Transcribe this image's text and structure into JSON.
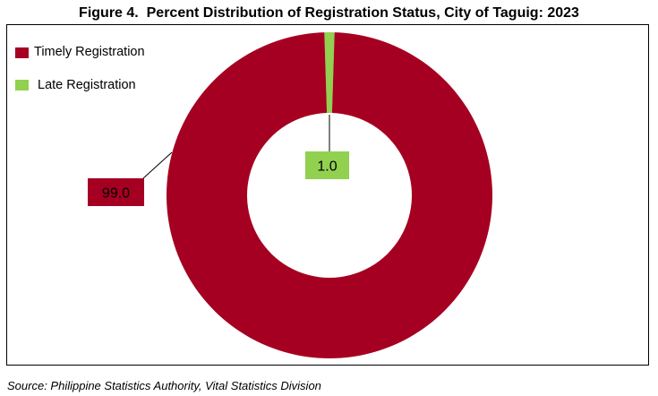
{
  "figure": {
    "title": "Figure 4.  Percent Distribution of Registration Status, City of Taguig: 2023",
    "source": "Source: Philippine Statistics Authority, Vital Statistics Division"
  },
  "chart_data": {
    "type": "pie",
    "variant": "doughnut",
    "title": "Figure 4.  Percent Distribution of Registration Status, City of Taguig: 2023",
    "categories": [
      "Timely Registration",
      "Late Registration"
    ],
    "values": [
      99.0,
      1.0
    ],
    "labels": [
      "99.0",
      "1.0"
    ],
    "unit": "percent",
    "colors": [
      "#a50021",
      "#92d050"
    ],
    "legend_position": "top-left"
  }
}
